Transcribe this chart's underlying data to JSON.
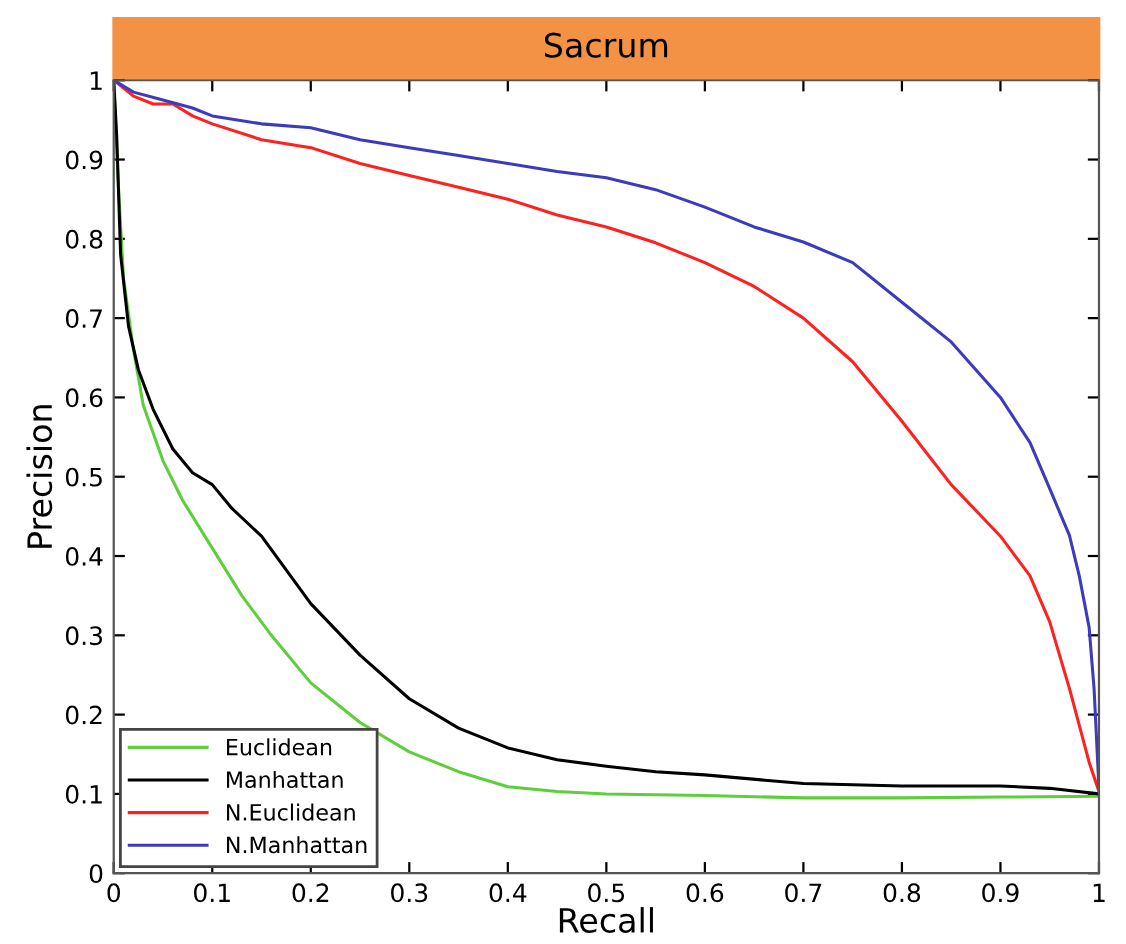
{
  "chart_data": {
    "type": "line",
    "title": "Sacrum",
    "xlabel": "Recall",
    "ylabel": "Precision",
    "xlim": [
      0,
      1
    ],
    "ylim": [
      0,
      1
    ],
    "xticks": [
      0,
      0.1,
      0.2,
      0.3,
      0.4,
      0.5,
      0.6,
      0.7,
      0.8,
      0.9,
      1
    ],
    "yticks": [
      0,
      0.1,
      0.2,
      0.3,
      0.4,
      0.5,
      0.6,
      0.7,
      0.8,
      0.9,
      1
    ],
    "grid": false,
    "legend": "bottom left",
    "marker": "none",
    "line_style": "solid",
    "series": [
      {
        "name": "Euclidean",
        "color": "#5ccf3a",
        "x": [
          0,
          0.005,
          0.01,
          0.02,
          0.03,
          0.05,
          0.07,
          0.1,
          0.13,
          0.16,
          0.2,
          0.25,
          0.3,
          0.35,
          0.4,
          0.45,
          0.5,
          0.6,
          0.7,
          0.8,
          0.9,
          1.0
        ],
        "values": [
          1.0,
          0.86,
          0.75,
          0.66,
          0.59,
          0.52,
          0.47,
          0.41,
          0.35,
          0.3,
          0.24,
          0.19,
          0.153,
          0.128,
          0.109,
          0.103,
          0.1,
          0.098,
          0.095,
          0.095,
          0.096,
          0.097
        ]
      },
      {
        "name": "Manhattan",
        "color": "#000000",
        "x": [
          0,
          0.003,
          0.007,
          0.015,
          0.025,
          0.04,
          0.06,
          0.08,
          0.1,
          0.12,
          0.15,
          0.2,
          0.25,
          0.3,
          0.35,
          0.4,
          0.45,
          0.5,
          0.55,
          0.6,
          0.7,
          0.8,
          0.9,
          0.95,
          1.0
        ],
        "values": [
          1.0,
          0.93,
          0.78,
          0.69,
          0.635,
          0.585,
          0.535,
          0.505,
          0.49,
          0.46,
          0.425,
          0.34,
          0.275,
          0.22,
          0.183,
          0.158,
          0.143,
          0.135,
          0.128,
          0.124,
          0.113,
          0.11,
          0.11,
          0.107,
          0.1
        ]
      },
      {
        "name": "N.Euclidean",
        "color": "#ff2020",
        "x": [
          0,
          0.01,
          0.02,
          0.04,
          0.06,
          0.08,
          0.1,
          0.15,
          0.2,
          0.25,
          0.3,
          0.35,
          0.4,
          0.45,
          0.5,
          0.55,
          0.6,
          0.65,
          0.7,
          0.75,
          0.8,
          0.85,
          0.9,
          0.93,
          0.95,
          0.97,
          0.99,
          1.0
        ],
        "values": [
          1.0,
          0.99,
          0.98,
          0.97,
          0.97,
          0.955,
          0.945,
          0.925,
          0.915,
          0.895,
          0.88,
          0.865,
          0.85,
          0.83,
          0.815,
          0.795,
          0.77,
          0.74,
          0.7,
          0.645,
          0.57,
          0.49,
          0.425,
          0.375,
          0.317,
          0.233,
          0.14,
          0.103
        ]
      },
      {
        "name": "N.Manhattan",
        "color": "#3b3bbf",
        "x": [
          0,
          0.02,
          0.05,
          0.08,
          0.1,
          0.15,
          0.2,
          0.25,
          0.3,
          0.35,
          0.4,
          0.45,
          0.5,
          0.55,
          0.6,
          0.65,
          0.7,
          0.75,
          0.8,
          0.85,
          0.9,
          0.93,
          0.95,
          0.97,
          0.98,
          0.99,
          0.995,
          1.0
        ],
        "values": [
          1.0,
          0.985,
          0.975,
          0.965,
          0.955,
          0.945,
          0.94,
          0.925,
          0.915,
          0.905,
          0.895,
          0.885,
          0.877,
          0.862,
          0.84,
          0.815,
          0.796,
          0.77,
          0.72,
          0.67,
          0.6,
          0.543,
          0.485,
          0.426,
          0.375,
          0.31,
          0.233,
          0.107
        ]
      }
    ]
  }
}
